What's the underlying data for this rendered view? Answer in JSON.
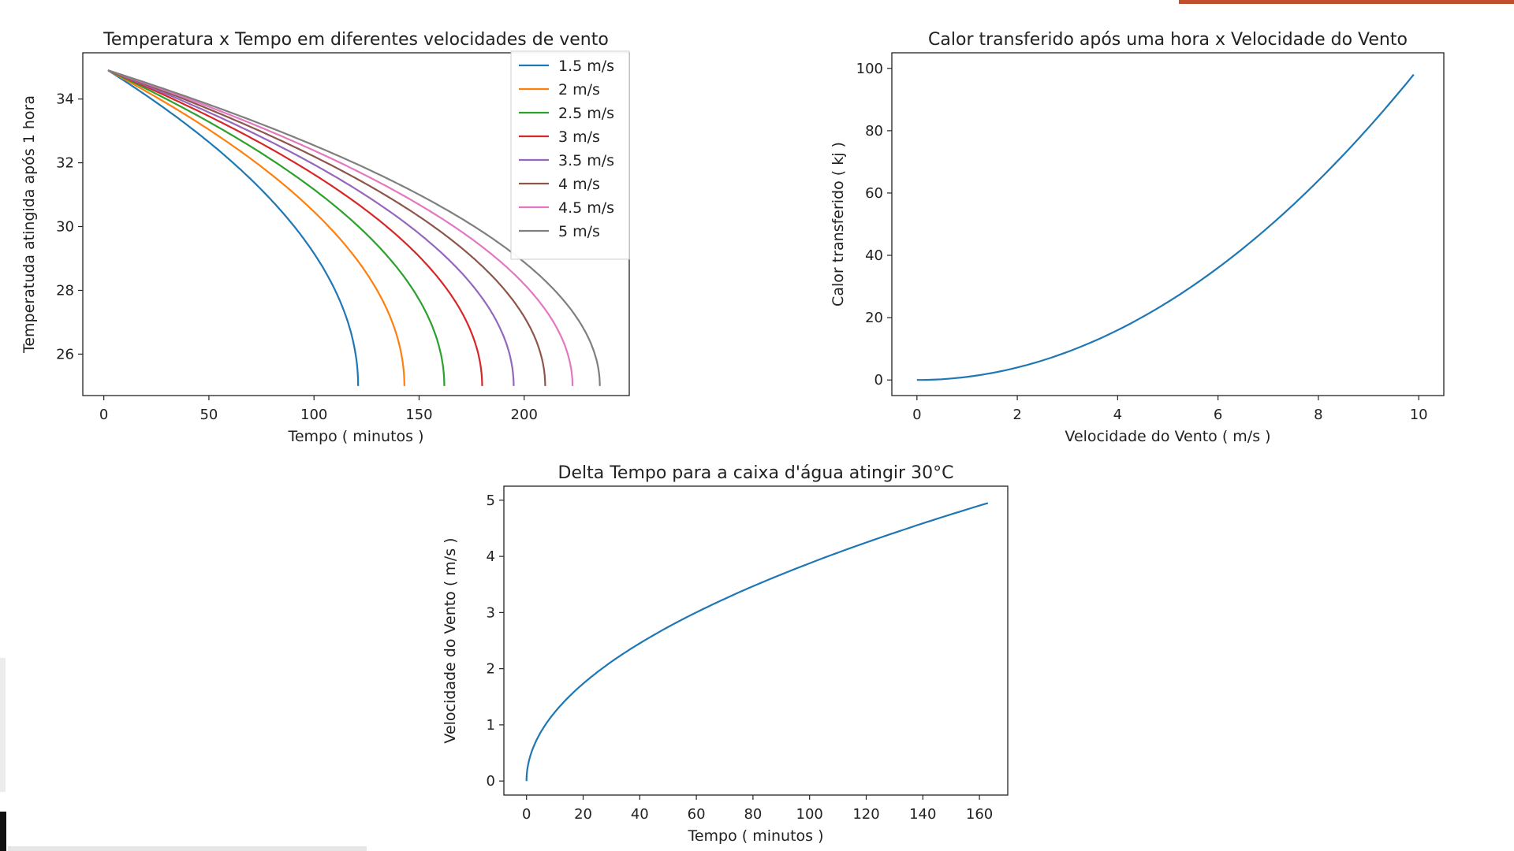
{
  "chart_data": [
    {
      "type": "line",
      "title": "Temperatura x Tempo em diferentes velocidades de vento",
      "xlabel": "Tempo ( minutos )",
      "ylabel": "Temperatuda atingida após 1 hora",
      "xlim": [
        -10,
        250
      ],
      "ylim": [
        24.7,
        35.45
      ],
      "xticks": [
        0,
        50,
        100,
        150,
        200
      ],
      "yticks": [
        26,
        28,
        30,
        32,
        34
      ],
      "legend_position": "top-right",
      "curve_start": {
        "x": 2,
        "y": 34.9
      },
      "y_end": 25,
      "series": [
        {
          "name": "1.5 m/s",
          "color": "#1f77b4",
          "x_end": 121
        },
        {
          "name": "2 m/s",
          "color": "#ff7f0e",
          "x_end": 143
        },
        {
          "name": "2.5 m/s",
          "color": "#2ca02c",
          "x_end": 162
        },
        {
          "name": "3 m/s",
          "color": "#d62728",
          "x_end": 180
        },
        {
          "name": "3.5 m/s",
          "color": "#9467bd",
          "x_end": 195
        },
        {
          "name": "4 m/s",
          "color": "#8c564b",
          "x_end": 210
        },
        {
          "name": "4.5 m/s",
          "color": "#e377c2",
          "x_end": 223
        },
        {
          "name": "5 m/s",
          "color": "#7f7f7f",
          "x_end": 236
        }
      ]
    },
    {
      "type": "line",
      "title": "Calor transferido após uma hora x Velocidade do Vento",
      "xlabel": "Velocidade do Vento ( m/s )",
      "ylabel": "Calor transferido ( kj )",
      "xlim": [
        -0.5,
        10.5
      ],
      "ylim": [
        -5,
        105
      ],
      "xticks": [
        0,
        2,
        4,
        6,
        8,
        10
      ],
      "yticks": [
        0,
        20,
        40,
        60,
        80,
        100
      ],
      "series": [
        {
          "color": "#1f77b4",
          "x": [
            0,
            1,
            2,
            3,
            4,
            5,
            6,
            7,
            8,
            9,
            9.9
          ],
          "y": [
            0,
            1,
            4,
            9,
            16,
            25,
            36,
            49,
            64,
            81,
            99
          ]
        }
      ]
    },
    {
      "type": "line",
      "title": "Delta Tempo para a caixa d'água atingir 30°C",
      "xlabel": "Tempo ( minutos )",
      "ylabel": "Velocidade do Vento ( m/s )",
      "xlim": [
        -8,
        170
      ],
      "ylim": [
        -0.25,
        5.25
      ],
      "xticks": [
        0,
        20,
        40,
        60,
        80,
        100,
        120,
        140,
        160
      ],
      "yticks": [
        0,
        1,
        2,
        3,
        4,
        5
      ],
      "series": [
        {
          "color": "#1f77b4",
          "x": [
            0,
            0.5,
            2,
            5,
            10,
            20,
            30,
            40,
            60,
            80,
            100,
            120,
            140,
            163
          ],
          "y": [
            0,
            0.28,
            0.55,
            0.87,
            1.23,
            1.74,
            2.13,
            2.46,
            3.01,
            3.47,
            3.88,
            4.25,
            4.59,
            4.95
          ]
        }
      ]
    }
  ]
}
